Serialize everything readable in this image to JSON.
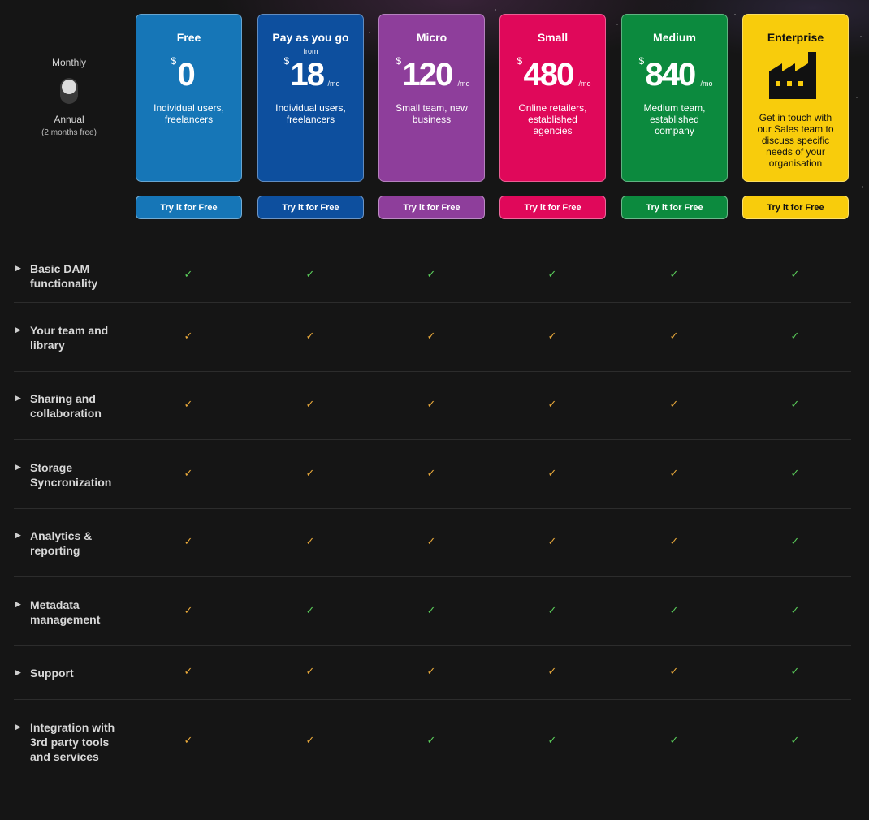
{
  "billing": {
    "monthly_label": "Monthly",
    "annual_label": "Annual",
    "annual_note": "(2 months free)"
  },
  "plans": [
    {
      "name": "Free",
      "from": "",
      "currency": "$",
      "price": "0",
      "per": "",
      "desc": "Individual users, freelancers",
      "cta": "Try it for Free",
      "color": "#1676b7",
      "text": "#ffffff"
    },
    {
      "name": "Pay as you go",
      "from": "from",
      "currency": "$",
      "price": "18",
      "per": "/mo",
      "desc": "Individual users, freelancers",
      "cta": "Try it for Free",
      "color": "#0d4f9e",
      "text": "#ffffff"
    },
    {
      "name": "Micro",
      "from": "",
      "currency": "$",
      "price": "120",
      "per": "/mo",
      "desc": "Small team, new business",
      "cta": "Try it for Free",
      "color": "#8e3e9b",
      "text": "#ffffff"
    },
    {
      "name": "Small",
      "from": "",
      "currency": "$",
      "price": "480",
      "per": "/mo",
      "desc": "Online retailers, established agencies",
      "cta": "Try it for Free",
      "color": "#e0085a",
      "text": "#ffffff"
    },
    {
      "name": "Medium",
      "from": "",
      "currency": "$",
      "price": "840",
      "per": "/mo",
      "desc": "Medium team, established company",
      "cta": "Try it for Free",
      "color": "#0c8a3e",
      "text": "#ffffff"
    },
    {
      "name": "Enterprise",
      "from": "",
      "currency": "",
      "price": "",
      "per": "",
      "icon": "factory-icon",
      "desc": "Get in touch with our Sales team to discuss specific needs of your organisation",
      "cta": "Try it for Free",
      "color": "#f8cc0c",
      "text": "#111111"
    }
  ],
  "features": [
    {
      "label": "Basic DAM functionality",
      "checks": [
        "green",
        "green",
        "green",
        "green",
        "green",
        "green"
      ]
    },
    {
      "label": "Your team and library",
      "checks": [
        "orange",
        "orange",
        "orange",
        "orange",
        "orange",
        "green"
      ]
    },
    {
      "label": "Sharing and collaboration",
      "checks": [
        "orange",
        "orange",
        "orange",
        "orange",
        "orange",
        "green"
      ]
    },
    {
      "label": "Storage Syncronization",
      "checks": [
        "orange",
        "orange",
        "orange",
        "orange",
        "orange",
        "green"
      ]
    },
    {
      "label": "Analytics & reporting",
      "checks": [
        "orange",
        "orange",
        "orange",
        "orange",
        "orange",
        "green"
      ]
    },
    {
      "label": "Metadata management",
      "checks": [
        "orange",
        "green",
        "green",
        "green",
        "green",
        "green"
      ]
    },
    {
      "label": "Support",
      "checks": [
        "orange",
        "orange",
        "orange",
        "orange",
        "orange",
        "green"
      ]
    },
    {
      "label": "Integration with 3rd party tools and services",
      "checks": [
        "orange",
        "orange",
        "green",
        "green",
        "green",
        "green"
      ]
    }
  ],
  "icons": {
    "check": "check-icon",
    "expand": "triangle-right-icon"
  }
}
